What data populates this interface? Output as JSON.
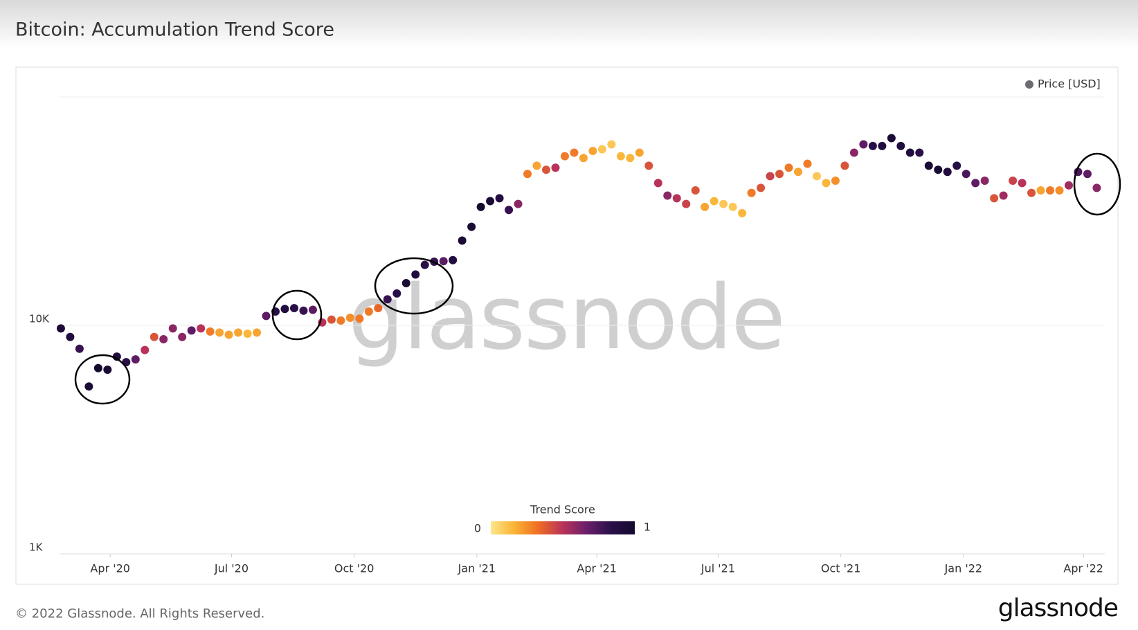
{
  "chart_data": {
    "type": "scatter",
    "title": "Bitcoin: Accumulation Trend Score",
    "footer": "© 2022 Glassnode. All Rights Reserved.",
    "logo": "glassnode",
    "watermark": "glassnode",
    "log_scale_y": true,
    "grid": true,
    "legend": "top-right",
    "xlim": [
      "2020-02-23",
      "2022-04-17"
    ],
    "xticks": [
      {
        "value": "2020-04-01",
        "label": "Apr '20"
      },
      {
        "value": "2020-07-01",
        "label": "Jul '20"
      },
      {
        "value": "2020-10-01",
        "label": "Oct '20"
      },
      {
        "value": "2021-01-01",
        "label": "Jan '21"
      },
      {
        "value": "2021-04-01",
        "label": "Apr '21"
      },
      {
        "value": "2021-07-01",
        "label": "Jul '21"
      },
      {
        "value": "2021-10-01",
        "label": "Oct '21"
      },
      {
        "value": "2022-01-01",
        "label": "Jan '22"
      },
      {
        "value": "2022-04-01",
        "label": "Apr '22"
      }
    ],
    "ylim": [
      1000,
      100000
    ],
    "yticks": [
      {
        "value": 1000,
        "label": "1K"
      },
      {
        "value": 10000,
        "label": "10K"
      },
      {
        "value": 100000,
        "label": ""
      }
    ],
    "colorbar": {
      "title": "Trend Score",
      "min": 0,
      "max": 1,
      "colors": [
        "#fde68a",
        "#f9b233",
        "#ee6c24",
        "#b8325a",
        "#6a1f6b",
        "#2a0f4a",
        "#140a2e"
      ]
    },
    "x": [
      "2020-02-24",
      "2020-03-02",
      "2020-03-09",
      "2020-03-16",
      "2020-03-23",
      "2020-03-30",
      "2020-04-06",
      "2020-04-13",
      "2020-04-20",
      "2020-04-27",
      "2020-05-04",
      "2020-05-11",
      "2020-05-18",
      "2020-05-25",
      "2020-06-01",
      "2020-06-08",
      "2020-06-15",
      "2020-06-22",
      "2020-06-29",
      "2020-07-06",
      "2020-07-13",
      "2020-07-20",
      "2020-07-27",
      "2020-08-03",
      "2020-08-10",
      "2020-08-17",
      "2020-08-24",
      "2020-08-31",
      "2020-09-07",
      "2020-09-14",
      "2020-09-21",
      "2020-09-28",
      "2020-10-05",
      "2020-10-12",
      "2020-10-19",
      "2020-10-26",
      "2020-11-02",
      "2020-11-09",
      "2020-11-16",
      "2020-11-23",
      "2020-11-30",
      "2020-12-07",
      "2020-12-14",
      "2020-12-21",
      "2020-12-28",
      "2021-01-04",
      "2021-01-11",
      "2021-01-18",
      "2021-01-25",
      "2021-02-01",
      "2021-02-08",
      "2021-02-15",
      "2021-02-22",
      "2021-03-01",
      "2021-03-08",
      "2021-03-15",
      "2021-03-22",
      "2021-03-29",
      "2021-04-05",
      "2021-04-12",
      "2021-04-19",
      "2021-04-26",
      "2021-05-03",
      "2021-05-10",
      "2021-05-17",
      "2021-05-24",
      "2021-05-31",
      "2021-06-07",
      "2021-06-14",
      "2021-06-21",
      "2021-06-28",
      "2021-07-05",
      "2021-07-12",
      "2021-07-19",
      "2021-07-26",
      "2021-08-02",
      "2021-08-09",
      "2021-08-16",
      "2021-08-23",
      "2021-08-30",
      "2021-09-06",
      "2021-09-13",
      "2021-09-20",
      "2021-09-27",
      "2021-10-04",
      "2021-10-11",
      "2021-10-18",
      "2021-10-25",
      "2021-11-01",
      "2021-11-08",
      "2021-11-15",
      "2021-11-22",
      "2021-11-29",
      "2021-12-06",
      "2021-12-13",
      "2021-12-20",
      "2021-12-27",
      "2022-01-03",
      "2022-01-10",
      "2022-01-17",
      "2022-01-24",
      "2022-01-31",
      "2022-02-07",
      "2022-02-14",
      "2022-02-21",
      "2022-02-28",
      "2022-03-07",
      "2022-03-14",
      "2022-03-21",
      "2022-03-28",
      "2022-04-04",
      "2022-04-11"
    ],
    "series": [
      {
        "name": "Price [USD]",
        "color": "#6b6b73",
        "values": [
          9700,
          8900,
          7900,
          5400,
          6500,
          6400,
          7300,
          6900,
          7100,
          7800,
          8900,
          8700,
          9700,
          8900,
          9500,
          9700,
          9400,
          9300,
          9100,
          9300,
          9200,
          9300,
          11000,
          11500,
          11800,
          11900,
          11600,
          11700,
          10300,
          10600,
          10500,
          10800,
          10700,
          11500,
          11900,
          13000,
          13800,
          15300,
          16700,
          18400,
          19000,
          19100,
          19300,
          23500,
          27000,
          33000,
          35000,
          36000,
          32000,
          34000,
          46000,
          50000,
          48000,
          49000,
          55000,
          57000,
          54000,
          58000,
          59000,
          62000,
          55000,
          54000,
          57000,
          50000,
          42000,
          37000,
          36000,
          34000,
          39000,
          33000,
          35000,
          34000,
          33000,
          31000,
          38000,
          40000,
          45000,
          46000,
          49000,
          47000,
          51000,
          45000,
          42000,
          43000,
          50000,
          57000,
          62000,
          61000,
          61000,
          66000,
          61000,
          57000,
          57000,
          50000,
          48000,
          47000,
          50000,
          46000,
          42000,
          43000,
          36000,
          37000,
          43000,
          42000,
          38000,
          39000,
          39000,
          39000,
          41000,
          47000,
          46000,
          40000
        ],
        "trend_score": [
          0.95,
          0.9,
          0.8,
          0.95,
          1,
          0.95,
          0.9,
          0.85,
          0.7,
          0.5,
          0.4,
          0.6,
          0.6,
          0.6,
          0.7,
          0.5,
          0.3,
          0.2,
          0.2,
          0.2,
          0.15,
          0.2,
          0.7,
          0.85,
          0.9,
          0.85,
          0.8,
          0.7,
          0.5,
          0.4,
          0.3,
          0.25,
          0.3,
          0.3,
          0.35,
          0.8,
          0.85,
          0.95,
          0.9,
          0.85,
          0.8,
          0.7,
          0.9,
          0.95,
          0.95,
          1,
          0.95,
          0.9,
          0.8,
          0.6,
          0.3,
          0.2,
          0.4,
          0.5,
          0.3,
          0.3,
          0.2,
          0.2,
          0.1,
          0.1,
          0.15,
          0.15,
          0.2,
          0.4,
          0.5,
          0.6,
          0.5,
          0.45,
          0.4,
          0.2,
          0.15,
          0.1,
          0.1,
          0.15,
          0.3,
          0.4,
          0.45,
          0.4,
          0.3,
          0.2,
          0.3,
          0.1,
          0.15,
          0.25,
          0.4,
          0.6,
          0.7,
          0.85,
          0.9,
          0.95,
          0.9,
          0.9,
          0.85,
          0.95,
          0.95,
          0.9,
          0.85,
          0.75,
          0.7,
          0.6,
          0.4,
          0.55,
          0.45,
          0.5,
          0.4,
          0.2,
          0.3,
          0.25,
          0.55,
          0.75,
          0.7,
          0.6
        ]
      }
    ]
  }
}
